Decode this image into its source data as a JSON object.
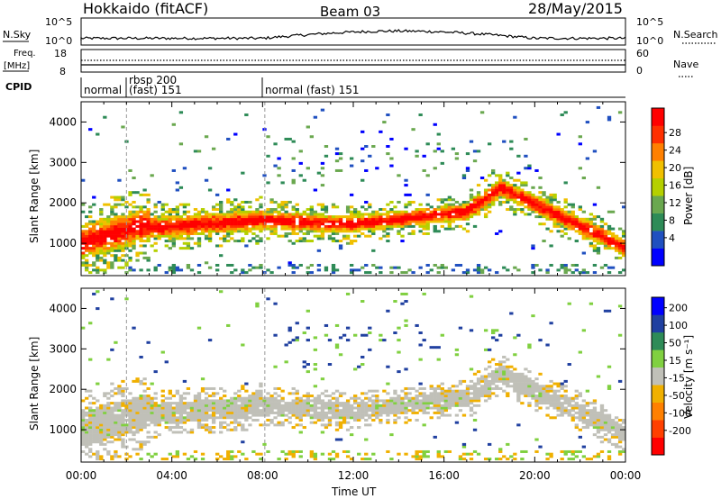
{
  "header": {
    "station": "Hokkaido (fitACF)",
    "beam": "Beam 03",
    "date": "28/May/2015"
  },
  "strip_labels": {
    "nsky": "N.Sky",
    "freq_line1": "Freq.",
    "freq_line2": "[MHz]",
    "cpid": "CPID",
    "nsearch": "N.Search",
    "nave": "Nave",
    "nsky_ticks": [
      "10^5",
      "10^0"
    ],
    "nsearch_ticks": [
      "10^5",
      "10^0"
    ],
    "freq_ticks": [
      "18",
      "8"
    ],
    "nave_ticks": [
      "60",
      "0"
    ]
  },
  "cpid_labels": [
    {
      "text": "normal",
      "t": 0.1
    },
    {
      "text": "rbsp 200",
      "t": 2.0
    },
    {
      "text": "(fast) 151",
      "t": 2.0
    },
    {
      "text": "normal (fast) 151",
      "t": 8.1
    }
  ],
  "chart_data": [
    {
      "type": "heatmap",
      "name": "power",
      "xlabel": "",
      "ylabel": "Slant Range [km]",
      "xlim": [
        0,
        24
      ],
      "ylim": [
        200,
        4500
      ],
      "yticks": [
        "1000",
        "2000",
        "3000",
        "4000"
      ],
      "colorbar_label": "Power [dB]",
      "colorbar_ticks": [
        "28",
        "24",
        "20",
        "16",
        "12",
        "8",
        "4"
      ],
      "colors": [
        "#0000ff",
        "#2050c0",
        "#2e8b57",
        "#6aa84f",
        "#b5d000",
        "#f0c000",
        "#ff8000",
        "#ff3000",
        "#ff0000"
      ]
    },
    {
      "type": "heatmap",
      "name": "velocity",
      "xlabel": "Time UT",
      "ylabel": "Slant Range [km]",
      "xlim": [
        0,
        24
      ],
      "ylim": [
        200,
        4500
      ],
      "xticks": [
        "00:00",
        "04:00",
        "08:00",
        "12:00",
        "16:00",
        "20:00",
        "00:00"
      ],
      "yticks": [
        "1000",
        "2000",
        "3000",
        "4000"
      ],
      "colorbar_label": "Velocity [m s⁻¹]",
      "colorbar_ticks": [
        "200",
        "100",
        "50",
        "15",
        "-15",
        "-50",
        "-100",
        "-200"
      ],
      "colors": [
        "#ff0000",
        "#ff4000",
        "#ff8000",
        "#f0b000",
        "#c0c0b8",
        "#80d040",
        "#2e8b57",
        "#2040a0",
        "#0000ff"
      ]
    }
  ]
}
